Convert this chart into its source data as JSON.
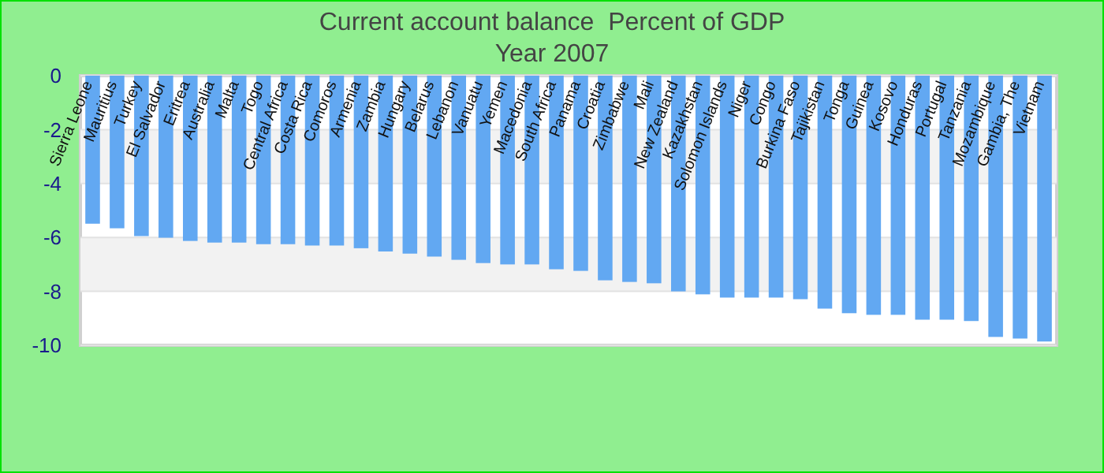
{
  "chart_data": {
    "type": "bar",
    "title": "Current account balance  Percent of GDP",
    "subtitle": "Year 2007",
    "categories": [
      "Sierra Leone",
      "Mauritius",
      "Turkey",
      "El Salvador",
      "Eritrea",
      "Australia",
      "Malta",
      "Togo",
      "Central Africa",
      "Costa Rica",
      "Comoros",
      "Armenia",
      "Zambia",
      "Hungary",
      "Belarus",
      "Lebanon",
      "Vanuatu",
      "Yemen",
      "Macedonia",
      "South Africa",
      "Panama",
      "Croatia",
      "Zimbabwe",
      "Mali",
      "New Zealand",
      "Kazakhstan",
      "Solomon Islands",
      "Niger",
      "Congo",
      "Burkina Faso",
      "Tajikistan",
      "Tonga",
      "Guinea",
      "Kosovo",
      "Honduras",
      "Portugal",
      "Tanzania",
      "Mozambique",
      "Gambia, The",
      "Vietnam"
    ],
    "values": [
      -5.49,
      -5.66,
      -5.95,
      -6.01,
      -6.13,
      -6.19,
      -6.19,
      -6.25,
      -6.25,
      -6.3,
      -6.3,
      -6.4,
      -6.52,
      -6.6,
      -6.71,
      -6.83,
      -6.95,
      -7.0,
      -7.0,
      -7.18,
      -7.24,
      -7.59,
      -7.65,
      -7.7,
      -8.0,
      -8.11,
      -8.23,
      -8.23,
      -8.23,
      -8.29,
      -8.64,
      -8.81,
      -8.87,
      -8.87,
      -9.05,
      -9.05,
      -9.1,
      -9.69,
      -9.75,
      -9.86
    ],
    "color": "#62a8f2",
    "ylim": [
      -10,
      0
    ],
    "yticks": [
      -10,
      -8,
      -6,
      -4,
      -2,
      0
    ],
    "grid": "y"
  }
}
